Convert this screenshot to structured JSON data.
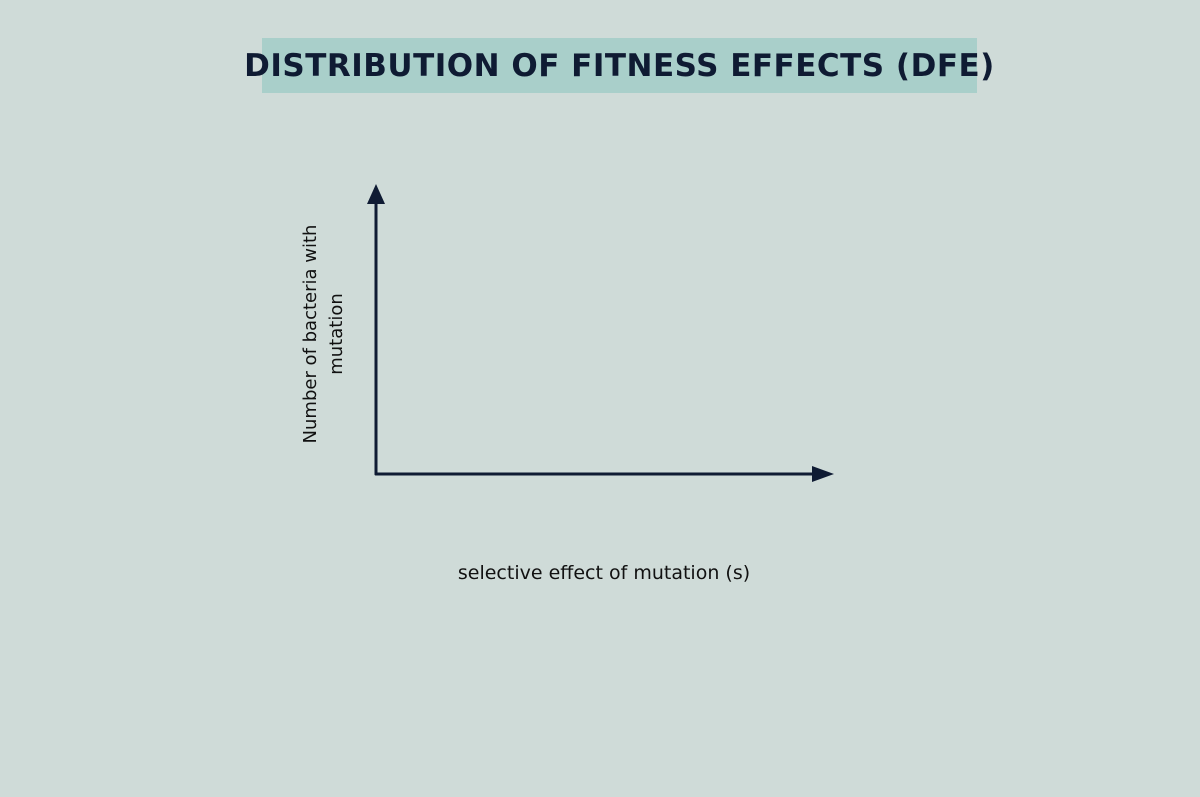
{
  "title": "DISTRIBUTION OF FITNESS EFFECTS (DFE)",
  "axes": {
    "y_label_line1": "Number of bacteria with",
    "y_label_line2": "mutation",
    "x_label": "selective effect of mutation (s)"
  },
  "colors": {
    "background": "#cfdbd8",
    "title_box": "#a9cfca",
    "axis": "#0f1b33"
  }
}
